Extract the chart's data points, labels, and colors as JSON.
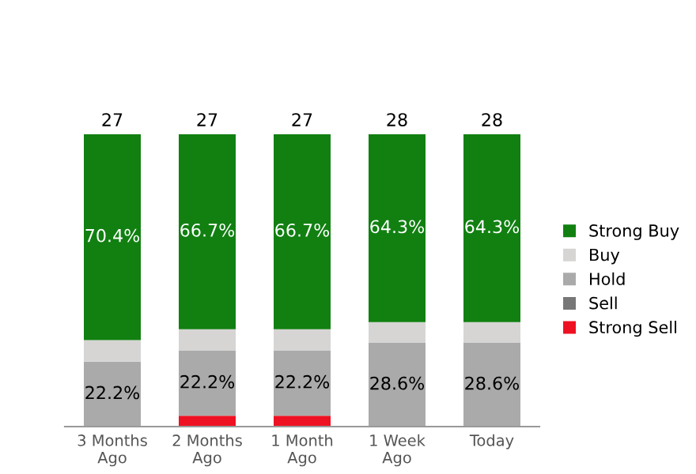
{
  "chart_data": {
    "type": "bar",
    "stacked": true,
    "categories": [
      "3 Months\nAgo",
      "2 Months\nAgo",
      "1 Month\nAgo",
      "1 Week\nAgo",
      "Today"
    ],
    "series": [
      {
        "name": "Strong Sell",
        "color": "#ee1122",
        "values": [
          0,
          3.7,
          3.7,
          0,
          0
        ]
      },
      {
        "name": "Sell",
        "color": "#777777",
        "values": [
          0,
          0,
          0,
          0,
          0
        ]
      },
      {
        "name": "Hold",
        "color": "#aaaaaa",
        "values": [
          22.2,
          22.2,
          22.2,
          28.6,
          28.6
        ],
        "value_labels": [
          "22.2%",
          "22.2%",
          "22.2%",
          "28.6%",
          "28.6%"
        ]
      },
      {
        "name": "Buy",
        "color": "#d6d5d4",
        "values": [
          7.4,
          7.4,
          7.4,
          7.1,
          7.1
        ]
      },
      {
        "name": "Strong Buy",
        "color": "#118011",
        "values": [
          70.4,
          66.7,
          66.7,
          64.3,
          64.3
        ],
        "value_labels": [
          "70.4%",
          "66.7%",
          "66.7%",
          "64.3%",
          "64.3%"
        ]
      }
    ],
    "annotations": [
      {
        "text": "27",
        "x": "3 Months\nAgo",
        "y": 100
      },
      {
        "text": "27",
        "x": "2 Months\nAgo",
        "y": 100
      },
      {
        "text": "27",
        "x": "1 Month\nAgo",
        "y": 100
      },
      {
        "text": "28",
        "x": "1 Week\nAgo",
        "y": 100
      },
      {
        "text": "28",
        "x": "Today",
        "y": 100
      }
    ],
    "ylim": [
      0,
      100
    ],
    "tick_labels": "x",
    "legend": "right",
    "grid": false
  }
}
